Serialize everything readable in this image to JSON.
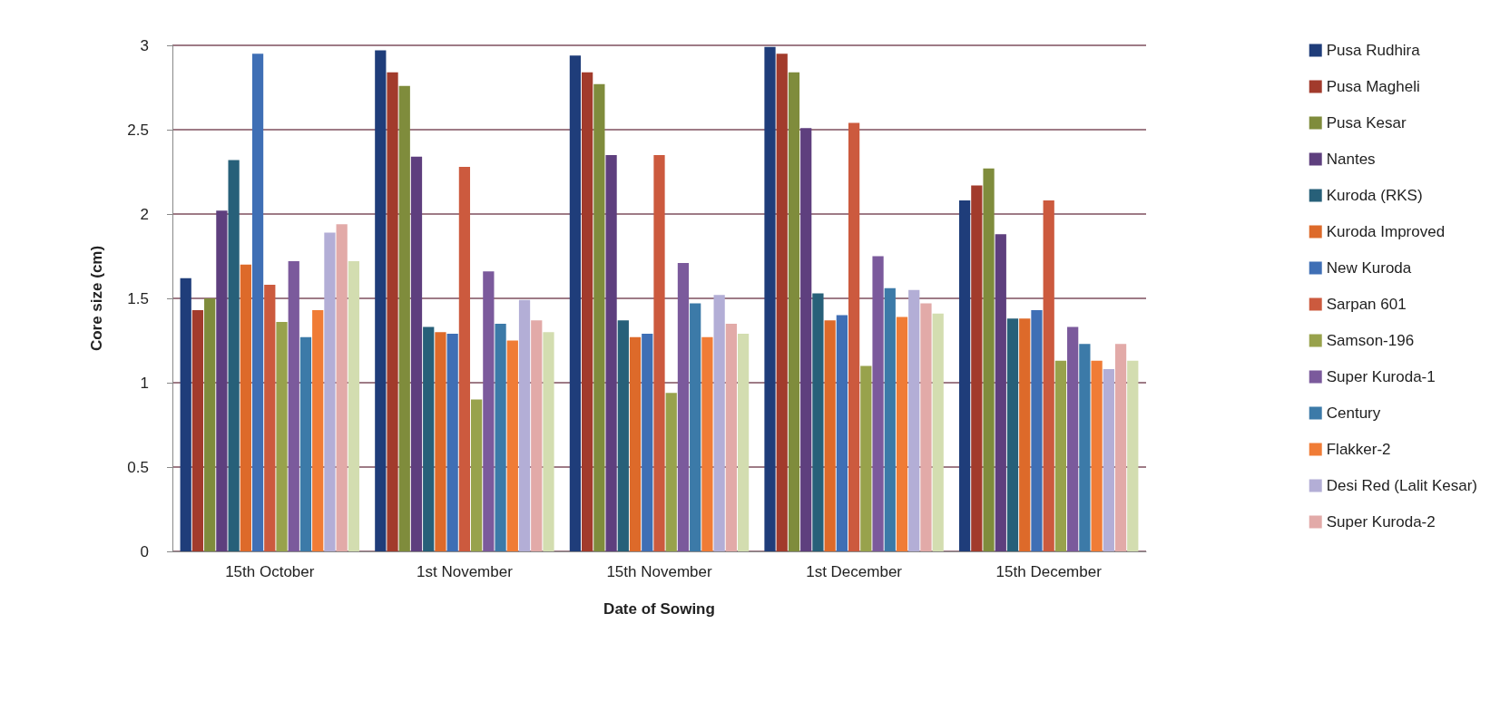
{
  "chart_data": {
    "type": "bar",
    "xlabel": "Date of Sowing",
    "ylabel": "Core size (cm)",
    "categories": [
      "15th October",
      "1st November",
      "15th November",
      "1st December",
      "15th December"
    ],
    "ylim": [
      0,
      3
    ],
    "yticks": [
      0,
      0.5,
      1,
      1.5,
      2,
      2.5,
      3
    ],
    "grid": "y",
    "legend": "right",
    "series": [
      {
        "name": "Pusa Rudhira",
        "color": "#1f3d7a",
        "values": [
          1.62,
          2.97,
          2.94,
          2.99,
          2.08
        ]
      },
      {
        "name": "Pusa Magheli",
        "color": "#a23b2c",
        "values": [
          1.43,
          2.84,
          2.84,
          2.95,
          2.17
        ]
      },
      {
        "name": "Pusa Kesar",
        "color": "#7f8c3c",
        "values": [
          1.5,
          2.76,
          2.77,
          2.84,
          2.27
        ]
      },
      {
        "name": "Nantes",
        "color": "#5e3f7e",
        "values": [
          2.02,
          2.34,
          2.35,
          2.51,
          1.88
        ]
      },
      {
        "name": "Kuroda (RKS)",
        "color": "#276079",
        "values": [
          2.32,
          1.33,
          1.37,
          1.53,
          1.38
        ]
      },
      {
        "name": "Kuroda Improved",
        "color": "#dd6a2a",
        "values": [
          1.7,
          1.3,
          1.27,
          1.37,
          1.38
        ]
      },
      {
        "name": "New Kuroda",
        "color": "#3f6fb5",
        "values": [
          2.95,
          1.29,
          1.29,
          1.4,
          1.43
        ]
      },
      {
        "name": "Sarpan 601",
        "color": "#cc5a3e",
        "values": [
          1.58,
          2.28,
          2.35,
          2.54,
          2.08
        ]
      },
      {
        "name": "Samson-196",
        "color": "#98a24c",
        "values": [
          1.36,
          0.9,
          0.94,
          1.1,
          1.13
        ]
      },
      {
        "name": "Super Kuroda-1",
        "color": "#7b5a9c",
        "values": [
          1.72,
          1.66,
          1.71,
          1.75,
          1.33
        ]
      },
      {
        "name": "Century",
        "color": "#3c7aa8",
        "values": [
          1.27,
          1.35,
          1.47,
          1.56,
          1.23
        ]
      },
      {
        "name": "Flakker-2",
        "color": "#f07c36",
        "values": [
          1.43,
          1.25,
          1.27,
          1.39,
          1.13
        ]
      },
      {
        "name": "Desi Red (Lalit Kesar)",
        "color": "#b3aed6",
        "values": [
          1.89,
          1.49,
          1.52,
          1.55,
          1.08
        ]
      },
      {
        "name": "Super Kuroda-2",
        "color": "#e2aaa8",
        "values": [
          1.94,
          1.37,
          1.35,
          1.47,
          1.23
        ]
      },
      {
        "color": "#d3ddb0",
        "values": [
          1.72,
          1.3,
          1.29,
          1.41,
          1.13
        ]
      }
    ]
  }
}
